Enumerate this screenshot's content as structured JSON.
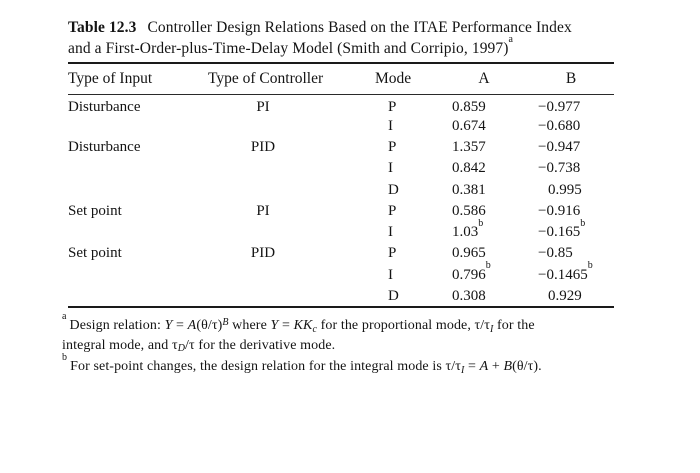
{
  "page": {
    "title": {
      "label": "Table 12.3",
      "line1": "Controller Design Relations Based on the ITAE Performance Index",
      "line2": "and a First-Order-plus-Time-Delay Model (Smith and Corripio, 1997)",
      "footnote_marker": "a"
    },
    "table": {
      "columns": [
        "Type of Input",
        "Type of Controller",
        "Mode",
        "A",
        "B"
      ],
      "rows": [
        {
          "input": "Disturbance",
          "controller": "PI",
          "mode": "P",
          "A": "0.859",
          "A_sup": "",
          "B": "−0.977",
          "B_sup": ""
        },
        {
          "input": "",
          "controller": "",
          "mode": "I",
          "A": "0.674",
          "A_sup": "",
          "B": "−0.680",
          "B_sup": ""
        },
        {
          "input": "Disturbance",
          "controller": "PID",
          "mode": "P",
          "A": "1.357",
          "A_sup": "",
          "B": "−0.947",
          "B_sup": ""
        },
        {
          "input": "",
          "controller": "",
          "mode": "I",
          "A": "0.842",
          "A_sup": "",
          "B": "−0.738",
          "B_sup": ""
        },
        {
          "input": "",
          "controller": "",
          "mode": "D",
          "A": "0.381",
          "A_sup": "",
          "B": "0.995",
          "B_sup": ""
        },
        {
          "input": "Set point",
          "controller": "PI",
          "mode": "P",
          "A": "0.586",
          "A_sup": "",
          "B": "−0.916",
          "B_sup": ""
        },
        {
          "input": "",
          "controller": "",
          "mode": "I",
          "A": "1.03",
          "A_sup": "b",
          "B": "−0.165",
          "B_sup": "b"
        },
        {
          "input": "Set point",
          "controller": "PID",
          "mode": "P",
          "A": "0.965",
          "A_sup": "",
          "B": "−0.85",
          "B_sup": ""
        },
        {
          "input": "",
          "controller": "",
          "mode": "I",
          "A": "0.796",
          "A_sup": "b",
          "B": "−0.1465",
          "B_sup": "b"
        },
        {
          "input": "",
          "controller": "",
          "mode": "D",
          "A": "0.308",
          "A_sup": "",
          "B": "0.929",
          "B_sup": ""
        }
      ]
    },
    "footnotes": [
      {
        "marker": "a",
        "segments": [
          {
            "t": "Design relation: "
          },
          {
            "t": "Y",
            "i": true
          },
          {
            "t": " = "
          },
          {
            "t": "A",
            "i": true
          },
          {
            "t": "(θ/τ)"
          },
          {
            "t": "B",
            "i": true,
            "sup": true
          },
          {
            "t": " where "
          },
          {
            "t": "Y",
            "i": true
          },
          {
            "t": " = "
          },
          {
            "t": "KK",
            "i": true
          },
          {
            "t": "c",
            "i": true,
            "sub": true
          },
          {
            "t": " for the proportional mode, τ/τ"
          },
          {
            "t": "I",
            "i": true,
            "sub": true
          },
          {
            "t": " for the"
          },
          {
            "br": true
          },
          {
            "t": "integral mode, and τ"
          },
          {
            "t": "D",
            "i": true,
            "sub": true
          },
          {
            "t": "/τ for the derivative mode."
          }
        ]
      },
      {
        "marker": "b",
        "segments": [
          {
            "t": "For set-point changes, the design relation for the integral mode is τ/τ"
          },
          {
            "t": "I",
            "i": true,
            "sub": true
          },
          {
            "t": " = "
          },
          {
            "t": "A",
            "i": true
          },
          {
            "t": " + "
          },
          {
            "t": "B",
            "i": true
          },
          {
            "t": "(θ/τ)."
          }
        ]
      }
    ]
  }
}
